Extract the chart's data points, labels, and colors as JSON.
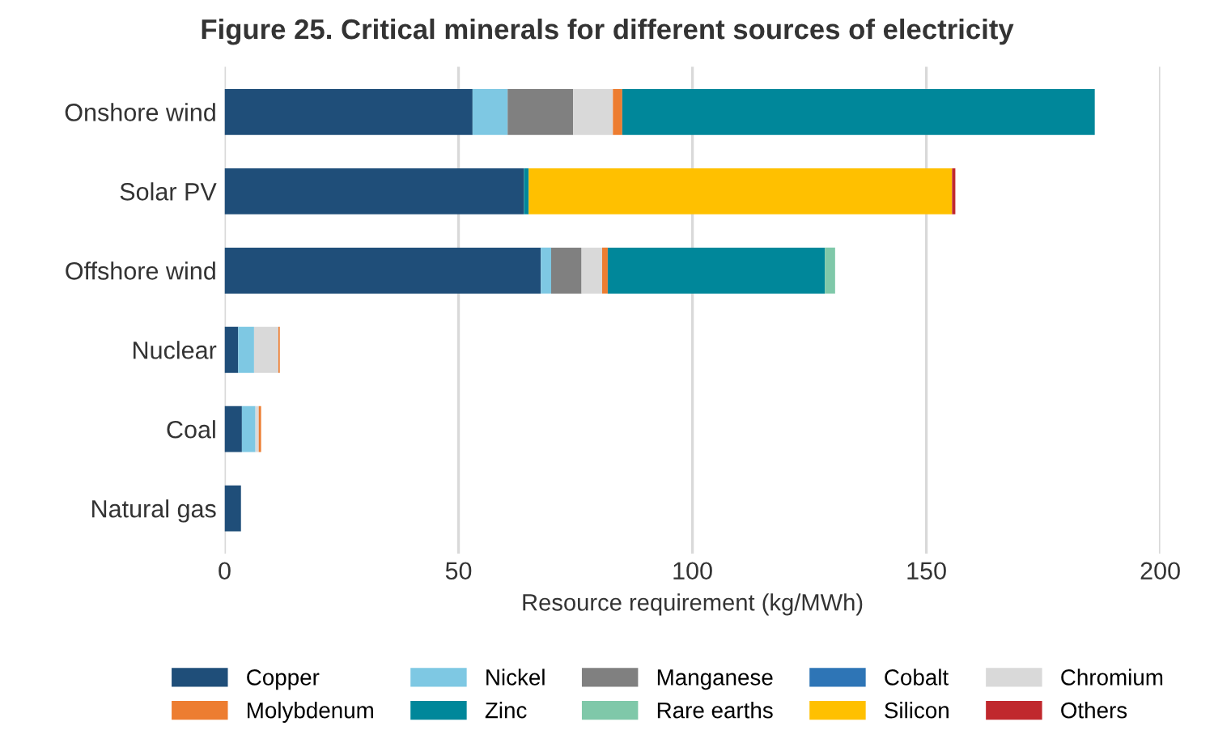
{
  "chart_data": {
    "type": "bar",
    "orientation": "horizontal",
    "stacked": true,
    "title": "Figure 25. Critical minerals for different sources of electricity",
    "xlabel": "Resource requirement (kg/MWh)",
    "categories": [
      "Onshore wind",
      "Solar PV",
      "Offshore wind",
      "Nuclear",
      "Coal",
      "Natural gas"
    ],
    "series": [
      {
        "name": "Copper",
        "color": "#1f4e79",
        "values": [
          53,
          64,
          67.6,
          2.9,
          3.7,
          3.5
        ]
      },
      {
        "name": "Nickel",
        "color": "#7ec8e3",
        "values": [
          7.5,
          0,
          2.2,
          3.4,
          2.9,
          0
        ]
      },
      {
        "name": "Manganese",
        "color": "#808080",
        "values": [
          14,
          0,
          6.5,
          0,
          0,
          0
        ]
      },
      {
        "name": "Cobalt",
        "color": "#2e75b6",
        "values": [
          0,
          0,
          0,
          0,
          0,
          0
        ]
      },
      {
        "name": "Chromium",
        "color": "#d9d9d9",
        "values": [
          8.5,
          0,
          4.4,
          5.2,
          0.7,
          0
        ]
      },
      {
        "name": "Molybdenum",
        "color": "#ed7d31",
        "values": [
          2,
          0,
          1.2,
          0.3,
          0.5,
          0
        ]
      },
      {
        "name": "Zinc",
        "color": "#00879a",
        "values": [
          101,
          1,
          46.4,
          0,
          0,
          0
        ]
      },
      {
        "name": "Rare earths",
        "color": "#7fc8a9",
        "values": [
          0,
          0,
          2.2,
          0,
          0,
          0
        ]
      },
      {
        "name": "Silicon",
        "color": "#ffc000",
        "values": [
          0,
          90.5,
          0,
          0,
          0,
          0
        ]
      },
      {
        "name": "Others",
        "color": "#c0282d",
        "values": [
          0,
          0.7,
          0,
          0,
          0,
          0
        ]
      }
    ],
    "xlim": [
      0,
      200
    ],
    "xticks": [
      0,
      50,
      100,
      150,
      200
    ],
    "grid": "x",
    "legend": "bottom"
  }
}
